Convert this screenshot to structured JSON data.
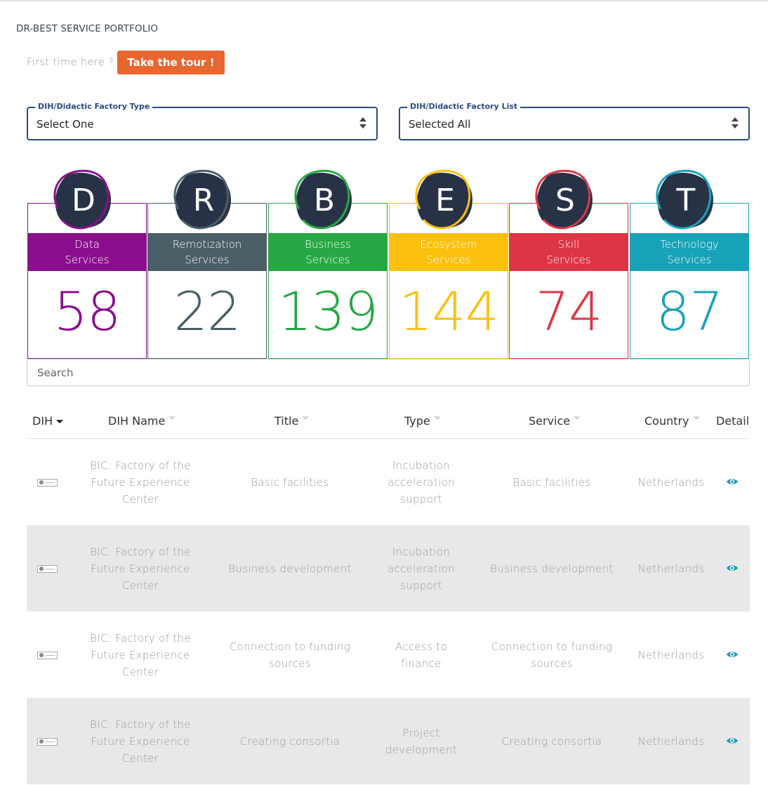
{
  "header": {
    "portfolio_title": "DR-BEST SERVICE PORTFOLIO",
    "tour_prompt": "First time here ?",
    "tour_button": "Take the tour !"
  },
  "filters": {
    "type": {
      "legend": "DIH/Didactic Factory Type",
      "value": "Select One"
    },
    "list": {
      "legend": "DIH/Didactic Factory List",
      "value": "Selected All"
    }
  },
  "colors": {
    "data": "#8a0f8e",
    "remotization": "#4a5f66",
    "business": "#27a844",
    "ecosystem": "#fcc00e",
    "skill": "#dc3545",
    "technology": "#18a2b8",
    "badge_fill": "#283246",
    "accent_orange": "#e8662f",
    "select_border": "#2c4a83",
    "detail_icon": "#1a9bb8"
  },
  "categories": [
    {
      "key": "data",
      "letter": "D",
      "line1": "Data",
      "line2": "Services",
      "count": "58",
      "icon": "letter-d-badge-icon"
    },
    {
      "key": "remotization",
      "letter": "R",
      "line1": "Remotization",
      "line2": "Services",
      "count": "22",
      "icon": "letter-r-badge-icon"
    },
    {
      "key": "business",
      "letter": "B",
      "line1": "Business",
      "line2": "Services",
      "count": "139",
      "icon": "letter-b-badge-icon"
    },
    {
      "key": "ecosystem",
      "letter": "E",
      "line1": "Ecosystem",
      "line2": "Services",
      "count": "144",
      "icon": "letter-e-badge-icon"
    },
    {
      "key": "skill",
      "letter": "S",
      "line1": "Skill",
      "line2": "Services",
      "count": "74",
      "icon": "letter-s-badge-icon"
    },
    {
      "key": "technology",
      "letter": "T",
      "line1": "Technology",
      "line2": "Services",
      "count": "87",
      "icon": "letter-t-badge-icon"
    }
  ],
  "search": {
    "placeholder": "Search"
  },
  "table": {
    "headers": {
      "dih": "DIH",
      "dih_name": "DIH Name",
      "title": "Title",
      "type": "Type",
      "service": "Service",
      "country": "Country",
      "detail": "Detail"
    },
    "rows": [
      {
        "dih_name": [
          "BIC: Factory of the",
          "Future Experience",
          "Center"
        ],
        "title": [
          "Basic facilities"
        ],
        "type": [
          "Incubation",
          "acceleration",
          "support"
        ],
        "service": [
          "Basic facilities"
        ],
        "country": "Netherlands"
      },
      {
        "dih_name": [
          "BIC: Factory of the",
          "Future Experience",
          "Center"
        ],
        "title": [
          "Business development"
        ],
        "type": [
          "Incubation",
          "acceleration",
          "support"
        ],
        "service": [
          "Business development"
        ],
        "country": "Netherlands"
      },
      {
        "dih_name": [
          "BIC: Factory of the",
          "Future Experience",
          "Center"
        ],
        "title": [
          "Connection to funding",
          "sources"
        ],
        "type": [
          "Access to",
          "finance"
        ],
        "service": [
          "Connection to funding",
          "sources"
        ],
        "country": "Netherlands"
      },
      {
        "dih_name": [
          "BIC: Factory of the",
          "Future Experience",
          "Center"
        ],
        "title": [
          "Creating consortia"
        ],
        "type": [
          "Project",
          "development"
        ],
        "service": [
          "Creating consortia"
        ],
        "country": "Netherlands"
      }
    ]
  }
}
